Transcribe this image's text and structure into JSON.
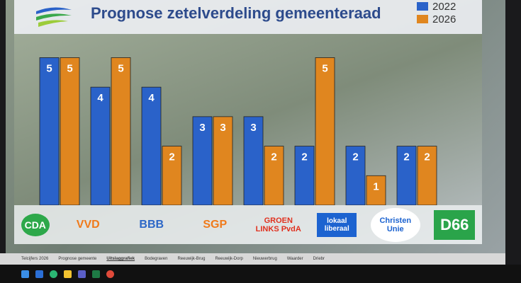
{
  "chart_data": {
    "type": "bar",
    "title": "Prognose zetelverdeling gemeenteraad",
    "categories": [
      "CDA",
      "VVD",
      "BBB",
      "SGP",
      "GroenLinks PvdA",
      "lokaal liberaal bodegraven reeuwijk",
      "ChristenUnie",
      "D66"
    ],
    "series": [
      {
        "name": "2022",
        "color": "#2a62c9",
        "values": [
          5,
          4,
          4,
          3,
          3,
          2,
          2,
          2
        ]
      },
      {
        "name": "2026",
        "color": "#e0861f",
        "values": [
          5,
          5,
          2,
          3,
          2,
          5,
          1,
          2
        ]
      }
    ],
    "ylim": [
      0,
      5.3
    ],
    "legend": "top-right",
    "grid": false
  },
  "party_logos": [
    {
      "text": "CDA",
      "color": "#2da84a"
    },
    {
      "text": "VVD",
      "color": "#f07a1a"
    },
    {
      "text": "BBB",
      "color": "#2c67c7"
    },
    {
      "text": "SGP",
      "color": "#f07a1a"
    },
    {
      "text": "GROEN LINKS PvdA",
      "color": "#e0301e"
    },
    {
      "text": "lokaal liberaal",
      "color": "#1c63d0"
    },
    {
      "text": "Christen Unie",
      "color": "#1c63d0"
    },
    {
      "text": "D66",
      "color": "#2aa44a"
    }
  ],
  "sheet_tabs": [
    "Telcijfers 2026",
    "Prognose gemeente",
    "Uitslaggrafiek",
    "Bodegraven",
    "Reeuwijk-Brug",
    "Reeuwijk-Dorp",
    "Nieuwerbrug",
    "Waarder",
    "Driebr"
  ],
  "active_tab": "Uitslaggrafiek"
}
